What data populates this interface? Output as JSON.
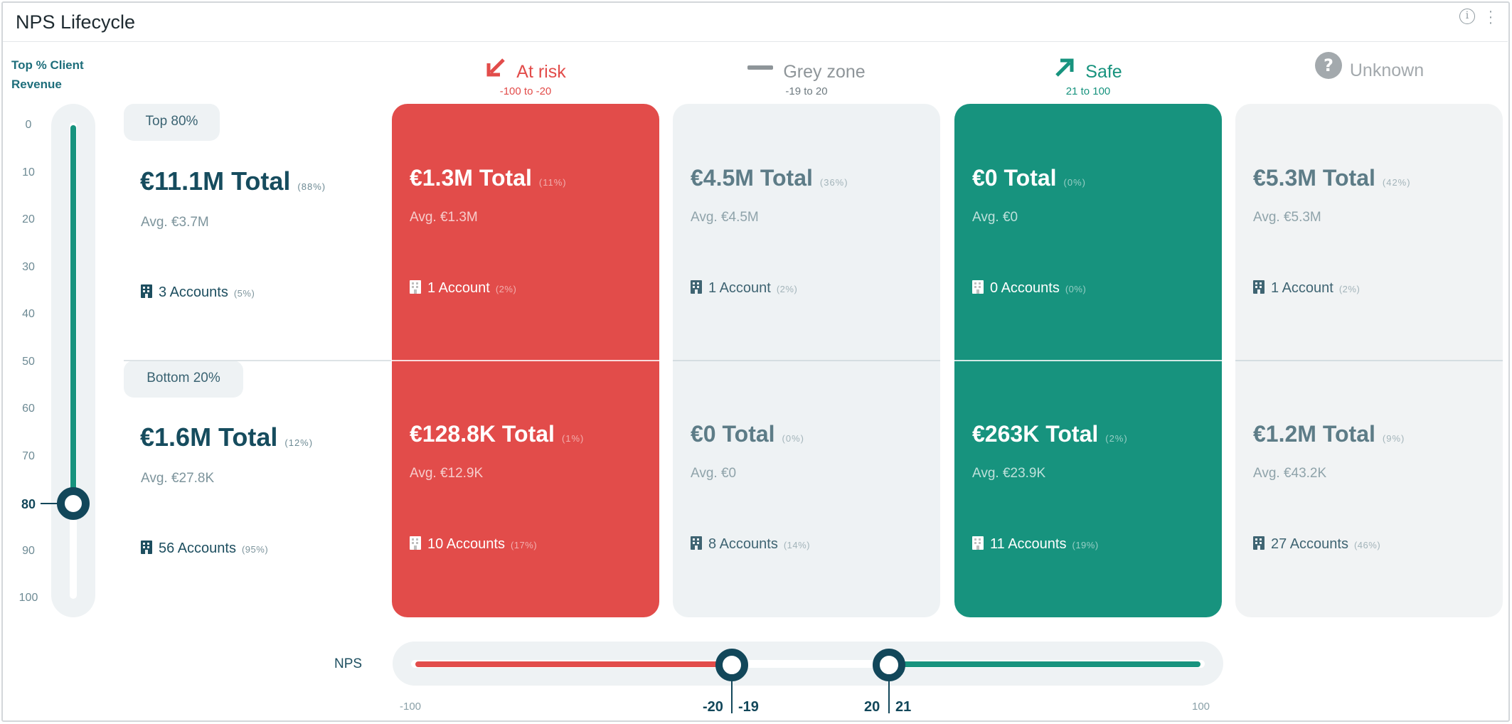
{
  "widget": {
    "title": "NPS Lifecycle",
    "info_icon": "info-circle-icon",
    "menu_icon": "kebab-vertical-icon"
  },
  "revenue_slider": {
    "title_line1": "Top % Client",
    "title_line2": "Revenue",
    "ticks": [
      "0",
      "10",
      "20",
      "30",
      "40",
      "50",
      "60",
      "70",
      "80",
      "90",
      "100"
    ],
    "selected_value": 80,
    "fill_color": "#17937e"
  },
  "rows": {
    "top": {
      "label": "Top 80%",
      "total": "€11.1M Total",
      "total_pct": "(88%)",
      "avg": "Avg. €3.7M",
      "accounts": "3 Accounts",
      "accounts_pct": "(5%)"
    },
    "bottom": {
      "label": "Bottom 20%",
      "total": "€1.6M Total",
      "total_pct": "(12%)",
      "avg": "Avg. €27.8K",
      "accounts": "56 Accounts",
      "accounts_pct": "(95%)"
    }
  },
  "columns": [
    {
      "name": "At risk",
      "range": "-100 to -20",
      "icon": "arrow-down-left-icon",
      "color": "#e24c4a",
      "top": {
        "total": "€1.3M Total",
        "total_pct": "(11%)",
        "avg": "Avg. €1.3M",
        "accounts": "1 Account",
        "accounts_pct": "(2%)"
      },
      "bottom": {
        "total": "€128.8K Total",
        "total_pct": "(1%)",
        "avg": "Avg. €12.9K",
        "accounts": "10 Accounts",
        "accounts_pct": "(17%)"
      }
    },
    {
      "name": "Grey zone",
      "range": "-19 to 20",
      "icon": "dash-icon",
      "color": "#8e9599",
      "top": {
        "total": "€4.5M Total",
        "total_pct": "(36%)",
        "avg": "Avg. €4.5M",
        "accounts": "1 Account",
        "accounts_pct": "(2%)"
      },
      "bottom": {
        "total": "€0 Total",
        "total_pct": "(0%)",
        "avg": "Avg. €0",
        "accounts": "8 Accounts",
        "accounts_pct": "(14%)"
      }
    },
    {
      "name": "Safe",
      "range": "21 to 100",
      "icon": "arrow-up-right-icon",
      "color": "#17937e",
      "top": {
        "total": "€0 Total",
        "total_pct": "(0%)",
        "avg": "Avg. €0",
        "accounts": "0 Accounts",
        "accounts_pct": "(0%)"
      },
      "bottom": {
        "total": "€263K Total",
        "total_pct": "(2%)",
        "avg": "Avg. €23.9K",
        "accounts": "11 Accounts",
        "accounts_pct": "(19%)"
      }
    },
    {
      "name": "Unknown",
      "range": "",
      "icon": "question-circle-icon",
      "color": "#a3a9ad",
      "top": {
        "total": "€5.3M Total",
        "total_pct": "(42%)",
        "avg": "Avg. €5.3M",
        "accounts": "1 Account",
        "accounts_pct": "(2%)"
      },
      "bottom": {
        "total": "€1.2M Total",
        "total_pct": "(9%)",
        "avg": "Avg. €43.2K",
        "accounts": "27 Accounts",
        "accounts_pct": "(46%)"
      }
    }
  ],
  "nps_slider": {
    "label": "NPS",
    "min": "-100",
    "max": "100",
    "left_handle_low": "-20",
    "left_handle_high": "-19",
    "right_handle_low": "20",
    "right_handle_high": "21",
    "left_color": "#e24c4a",
    "right_color": "#17937e"
  }
}
